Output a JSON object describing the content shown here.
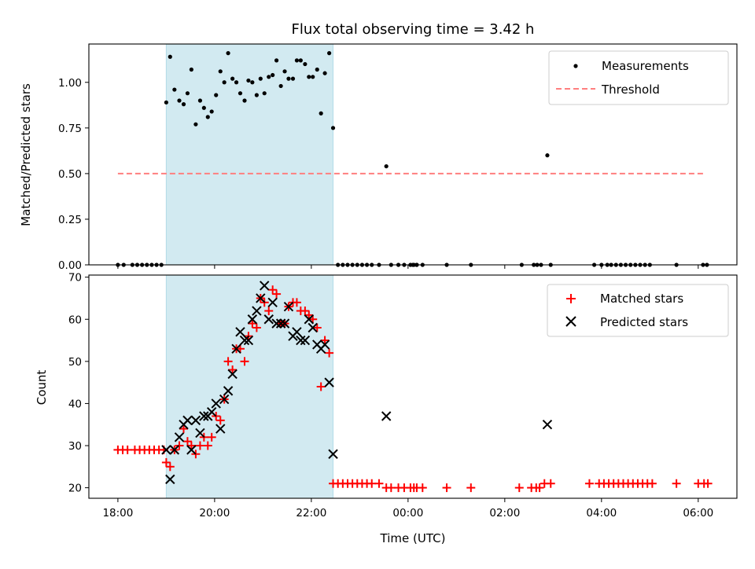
{
  "chart_data": [
    {
      "type": "scatter",
      "title": "Flux total observing time = 3.42 h",
      "xlabel": "",
      "ylabel": "Matched/Predicted stars",
      "ylim": [
        0,
        1.21
      ],
      "xlim_hours": [
        17.4,
        30.8
      ],
      "yticks": [
        0.0,
        0.25,
        0.5,
        0.75,
        1.0
      ],
      "ytick_labels": [
        "0.00",
        "0.25",
        "0.50",
        "0.75",
        "1.00"
      ],
      "grid": false,
      "legend_placement": "top-right",
      "shaded_span_hours": [
        19.0,
        22.45
      ],
      "shade_color": "#add8e6",
      "series": [
        {
          "name": "Measurements",
          "kind": "scatter",
          "marker": "dot",
          "color": "#000000",
          "points": [
            [
              18.0,
              0
            ],
            [
              18.12,
              0
            ],
            [
              18.3,
              0
            ],
            [
              18.4,
              0
            ],
            [
              18.5,
              0
            ],
            [
              18.6,
              0
            ],
            [
              18.7,
              0
            ],
            [
              18.8,
              0
            ],
            [
              18.9,
              0
            ],
            [
              19.0,
              0.89
            ],
            [
              19.08,
              1.14
            ],
            [
              19.17,
              0.96
            ],
            [
              19.27,
              0.9
            ],
            [
              19.36,
              0.88
            ],
            [
              19.44,
              0.94
            ],
            [
              19.52,
              1.07
            ],
            [
              19.61,
              0.77
            ],
            [
              19.7,
              0.9
            ],
            [
              19.78,
              0.86
            ],
            [
              19.86,
              0.81
            ],
            [
              19.94,
              0.84
            ],
            [
              20.03,
              0.93
            ],
            [
              20.12,
              1.06
            ],
            [
              20.2,
              1.0
            ],
            [
              20.28,
              1.16
            ],
            [
              20.37,
              1.02
            ],
            [
              20.45,
              1.0
            ],
            [
              20.53,
              0.94
            ],
            [
              20.62,
              0.9
            ],
            [
              20.7,
              1.01
            ],
            [
              20.78,
              1.0
            ],
            [
              20.87,
              0.93
            ],
            [
              20.95,
              1.02
            ],
            [
              21.03,
              0.94
            ],
            [
              21.12,
              1.03
            ],
            [
              21.2,
              1.04
            ],
            [
              21.28,
              1.12
            ],
            [
              21.37,
              0.98
            ],
            [
              21.45,
              1.06
            ],
            [
              21.53,
              1.02
            ],
            [
              21.62,
              1.02
            ],
            [
              21.7,
              1.12
            ],
            [
              21.78,
              1.12
            ],
            [
              21.87,
              1.1
            ],
            [
              21.95,
              1.03
            ],
            [
              22.03,
              1.03
            ],
            [
              22.12,
              1.07
            ],
            [
              22.2,
              0.83
            ],
            [
              22.28,
              1.05
            ],
            [
              22.37,
              1.16
            ],
            [
              22.45,
              0.75
            ],
            [
              22.55,
              0
            ],
            [
              22.65,
              0
            ],
            [
              22.75,
              0
            ],
            [
              22.85,
              0
            ],
            [
              22.95,
              0
            ],
            [
              23.05,
              0
            ],
            [
              23.15,
              0
            ],
            [
              23.25,
              0
            ],
            [
              23.4,
              0
            ],
            [
              23.55,
              0.54
            ],
            [
              23.65,
              0
            ],
            [
              23.8,
              0
            ],
            [
              23.92,
              0
            ],
            [
              24.05,
              0
            ],
            [
              24.12,
              0
            ],
            [
              24.18,
              0
            ],
            [
              24.3,
              0
            ],
            [
              24.1,
              0
            ],
            [
              24.18,
              0
            ],
            [
              24.8,
              0
            ],
            [
              25.3,
              0
            ],
            [
              26.35,
              0
            ],
            [
              26.6,
              0
            ],
            [
              26.67,
              0
            ],
            [
              26.75,
              0
            ],
            [
              26.88,
              0.6
            ],
            [
              26.95,
              0
            ],
            [
              27.85,
              0
            ],
            [
              28.0,
              0
            ],
            [
              28.12,
              0
            ],
            [
              28.2,
              0
            ],
            [
              28.3,
              0
            ],
            [
              28.4,
              0
            ],
            [
              28.5,
              0
            ],
            [
              28.6,
              0
            ],
            [
              28.7,
              0
            ],
            [
              28.8,
              0
            ],
            [
              28.9,
              0
            ],
            [
              29.0,
              0
            ],
            [
              29.55,
              0
            ],
            [
              30.1,
              0
            ],
            [
              30.18,
              0
            ]
          ]
        },
        {
          "name": "Threshold",
          "kind": "dashed-line",
          "color": "#ff7f7f",
          "points": [
            [
              18.0,
              0.5
            ],
            [
              30.15,
              0.5
            ]
          ]
        }
      ]
    },
    {
      "type": "scatter",
      "title": "",
      "xlabel": "Time (UTC)",
      "ylabel": "Count",
      "ylim": [
        17.5,
        70.5
      ],
      "xlim_hours": [
        17.4,
        30.8
      ],
      "yticks": [
        20,
        30,
        40,
        50,
        60,
        70
      ],
      "ytick_labels": [
        "20",
        "30",
        "40",
        "50",
        "60",
        "70"
      ],
      "xticks_hours": [
        18,
        20,
        22,
        24,
        26,
        28,
        30
      ],
      "xtick_labels": [
        "18:00",
        "20:00",
        "22:00",
        "00:00",
        "02:00",
        "04:00",
        "06:00"
      ],
      "grid": false,
      "legend_placement": "top-right",
      "shaded_span_hours": [
        19.0,
        22.45
      ],
      "shade_color": "#add8e6",
      "series": [
        {
          "name": "Matched stars",
          "kind": "scatter",
          "marker": "plus",
          "color": "#ff0000",
          "points": [
            [
              18.0,
              29
            ],
            [
              18.1,
              29
            ],
            [
              18.2,
              29
            ],
            [
              18.35,
              29
            ],
            [
              18.45,
              29
            ],
            [
              18.55,
              29
            ],
            [
              18.65,
              29
            ],
            [
              18.75,
              29
            ],
            [
              18.85,
              29
            ],
            [
              18.95,
              29
            ],
            [
              19.0,
              26
            ],
            [
              19.08,
              25
            ],
            [
              19.17,
              29
            ],
            [
              19.27,
              30
            ],
            [
              19.36,
              34
            ],
            [
              19.44,
              31
            ],
            [
              19.52,
              30
            ],
            [
              19.61,
              28
            ],
            [
              19.7,
              30
            ],
            [
              19.78,
              32
            ],
            [
              19.86,
              30
            ],
            [
              19.94,
              32
            ],
            [
              20.03,
              37
            ],
            [
              20.12,
              36
            ],
            [
              20.2,
              41
            ],
            [
              20.28,
              50
            ],
            [
              20.37,
              48
            ],
            [
              20.45,
              53
            ],
            [
              20.53,
              53
            ],
            [
              20.62,
              50
            ],
            [
              20.7,
              56
            ],
            [
              20.78,
              59
            ],
            [
              20.87,
              58
            ],
            [
              20.95,
              65
            ],
            [
              21.03,
              64
            ],
            [
              21.12,
              62
            ],
            [
              21.2,
              67
            ],
            [
              21.28,
              66
            ],
            [
              21.37,
              59
            ],
            [
              21.45,
              59
            ],
            [
              21.53,
              63
            ],
            [
              21.62,
              64
            ],
            [
              21.7,
              64
            ],
            [
              21.78,
              62
            ],
            [
              21.87,
              62
            ],
            [
              21.95,
              61
            ],
            [
              22.03,
              60
            ],
            [
              22.12,
              58
            ],
            [
              22.2,
              44
            ],
            [
              22.28,
              55
            ],
            [
              22.37,
              52
            ],
            [
              22.45,
              21
            ],
            [
              22.55,
              21
            ],
            [
              22.65,
              21
            ],
            [
              22.75,
              21
            ],
            [
              22.85,
              21
            ],
            [
              22.95,
              21
            ],
            [
              23.05,
              21
            ],
            [
              23.15,
              21
            ],
            [
              23.25,
              21
            ],
            [
              23.4,
              21
            ],
            [
              23.55,
              20
            ],
            [
              23.65,
              20
            ],
            [
              23.8,
              20
            ],
            [
              23.92,
              20
            ],
            [
              24.05,
              20
            ],
            [
              24.12,
              20
            ],
            [
              24.18,
              20
            ],
            [
              24.3,
              20
            ],
            [
              24.8,
              20
            ],
            [
              25.3,
              20
            ],
            [
              26.3,
              20
            ],
            [
              26.55,
              20
            ],
            [
              26.65,
              20
            ],
            [
              26.72,
              20
            ],
            [
              26.82,
              21
            ],
            [
              26.95,
              21
            ],
            [
              27.75,
              21
            ],
            [
              27.95,
              21
            ],
            [
              28.05,
              21
            ],
            [
              28.15,
              21
            ],
            [
              28.25,
              21
            ],
            [
              28.35,
              21
            ],
            [
              28.45,
              21
            ],
            [
              28.55,
              21
            ],
            [
              28.65,
              21
            ],
            [
              28.75,
              21
            ],
            [
              28.85,
              21
            ],
            [
              28.95,
              21
            ],
            [
              29.05,
              21
            ],
            [
              29.55,
              21
            ],
            [
              30.0,
              21
            ],
            [
              30.12,
              21
            ],
            [
              30.2,
              21
            ]
          ]
        },
        {
          "name": "Predicted stars",
          "kind": "scatter",
          "marker": "x",
          "color": "#000000",
          "points": [
            [
              19.0,
              29
            ],
            [
              19.08,
              22
            ],
            [
              19.17,
              29
            ],
            [
              19.27,
              32
            ],
            [
              19.36,
              35
            ],
            [
              19.44,
              36
            ],
            [
              19.52,
              29
            ],
            [
              19.61,
              36
            ],
            [
              19.7,
              33
            ],
            [
              19.78,
              37
            ],
            [
              19.86,
              37
            ],
            [
              19.94,
              38
            ],
            [
              20.03,
              40
            ],
            [
              20.12,
              34
            ],
            [
              20.2,
              41
            ],
            [
              20.28,
              43
            ],
            [
              20.37,
              47
            ],
            [
              20.45,
              53
            ],
            [
              20.53,
              57
            ],
            [
              20.62,
              55
            ],
            [
              20.7,
              55
            ],
            [
              20.78,
              60
            ],
            [
              20.87,
              62
            ],
            [
              20.95,
              65
            ],
            [
              21.03,
              68
            ],
            [
              21.12,
              60
            ],
            [
              21.2,
              64
            ],
            [
              21.28,
              59
            ],
            [
              21.37,
              59
            ],
            [
              21.45,
              59
            ],
            [
              21.53,
              63
            ],
            [
              21.62,
              56
            ],
            [
              21.7,
              57
            ],
            [
              21.78,
              55
            ],
            [
              21.87,
              55
            ],
            [
              21.95,
              60
            ],
            [
              22.03,
              58
            ],
            [
              22.12,
              54
            ],
            [
              22.2,
              53
            ],
            [
              22.28,
              54
            ],
            [
              22.37,
              45
            ],
            [
              22.45,
              28
            ],
            [
              23.55,
              37
            ],
            [
              26.88,
              35
            ]
          ]
        }
      ]
    }
  ]
}
